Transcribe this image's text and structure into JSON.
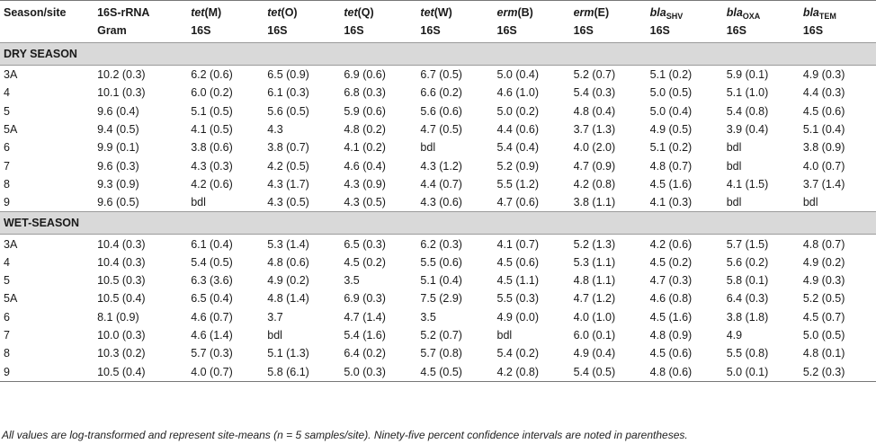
{
  "header": {
    "col0": "Season/site",
    "col1_line1": "16S-rRNA",
    "col1_line2": "Gram",
    "genes": [
      {
        "prefix": "tet",
        "suffix": "(M)",
        "sub": "",
        "norm": "16S"
      },
      {
        "prefix": "tet",
        "suffix": "(O)",
        "sub": "",
        "norm": "16S"
      },
      {
        "prefix": "tet",
        "suffix": "(Q)",
        "sub": "",
        "norm": "16S"
      },
      {
        "prefix": "tet",
        "suffix": "(W)",
        "sub": "",
        "norm": "16S"
      },
      {
        "prefix": "erm",
        "suffix": "(B)",
        "sub": "",
        "norm": "16S"
      },
      {
        "prefix": "erm",
        "suffix": "(E)",
        "sub": "",
        "norm": "16S"
      },
      {
        "prefix": "bla",
        "suffix": "",
        "sub": "SHV",
        "norm": "16S"
      },
      {
        "prefix": "bla",
        "suffix": "",
        "sub": "OXA",
        "norm": "16S"
      },
      {
        "prefix": "bla",
        "suffix": "",
        "sub": "TEM",
        "norm": "16S"
      }
    ]
  },
  "sections": [
    {
      "title": "DRY SEASON",
      "rows": [
        [
          "3A",
          "10.2 (0.3)",
          "6.2 (0.6)",
          "6.5 (0.9)",
          "6.9 (0.6)",
          "6.7 (0.5)",
          "5.0 (0.4)",
          "5.2 (0.7)",
          "5.1 (0.2)",
          "5.9 (0.1)",
          "4.9 (0.3)"
        ],
        [
          "4",
          "10.1 (0.3)",
          "6.0 (0.2)",
          "6.1 (0.3)",
          "6.8 (0.3)",
          "6.6 (0.2)",
          "4.6 (1.0)",
          "5.4 (0.3)",
          "5.0 (0.5)",
          "5.1 (1.0)",
          "4.4 (0.3)"
        ],
        [
          "5",
          "9.6 (0.4)",
          "5.1 (0.5)",
          "5.6 (0.5)",
          "5.9 (0.6)",
          "5.6 (0.6)",
          "5.0 (0.2)",
          "4.8 (0.4)",
          "5.0 (0.4)",
          "5.4 (0.8)",
          "4.5 (0.6)"
        ],
        [
          "5A",
          "9.4 (0.5)",
          "4.1 (0.5)",
          "4.3",
          "4.8 (0.2)",
          "4.7 (0.5)",
          "4.4 (0.6)",
          "3.7 (1.3)",
          "4.9 (0.5)",
          "3.9 (0.4)",
          "5.1 (0.4)"
        ],
        [
          "6",
          "9.9 (0.1)",
          "3.8 (0.6)",
          "3.8 (0.7)",
          "4.1 (0.2)",
          "bdl",
          "5.4 (0.4)",
          "4.0 (2.0)",
          "5.1 (0.2)",
          "bdl",
          "3.8 (0.9)"
        ],
        [
          "7",
          "9.6 (0.3)",
          "4.3 (0.3)",
          "4.2 (0.5)",
          "4.6 (0.4)",
          "4.3 (1.2)",
          "5.2 (0.9)",
          "4.7 (0.9)",
          "4.8 (0.7)",
          "bdl",
          "4.0 (0.7)"
        ],
        [
          "8",
          "9.3 (0.9)",
          "4.2 (0.6)",
          "4.3 (1.7)",
          "4.3 (0.9)",
          "4.4 (0.7)",
          "5.5 (1.2)",
          "4.2 (0.8)",
          "4.5 (1.6)",
          "4.1 (1.5)",
          "3.7 (1.4)"
        ],
        [
          "9",
          "9.6 (0.5)",
          "bdl",
          "4.3 (0.5)",
          "4.3 (0.5)",
          "4.3 (0.6)",
          "4.7 (0.6)",
          "3.8 (1.1)",
          "4.1 (0.3)",
          "bdl",
          "bdl"
        ]
      ]
    },
    {
      "title": "WET-SEASON",
      "rows": [
        [
          "3A",
          "10.4 (0.3)",
          "6.1 (0.4)",
          "5.3 (1.4)",
          "6.5 (0.3)",
          "6.2 (0.3)",
          "4.1 (0.7)",
          "5.2 (1.3)",
          "4.2 (0.6)",
          "5.7 (1.5)",
          "4.8 (0.7)"
        ],
        [
          "4",
          "10.4 (0.3)",
          "5.4 (0.5)",
          "4.8 (0.6)",
          "4.5 (0.2)",
          "5.5 (0.6)",
          "4.5 (0.6)",
          "5.3 (1.1)",
          "4.5 (0.2)",
          "5.6 (0.2)",
          "4.9 (0.2)"
        ],
        [
          "5",
          "10.5 (0.3)",
          "6.3 (3.6)",
          "4.9 (0.2)",
          "3.5",
          "5.1 (0.4)",
          "4.5 (1.1)",
          "4.8 (1.1)",
          "4.7 (0.3)",
          "5.8 (0.1)",
          "4.9 (0.3)"
        ],
        [
          "5A",
          "10.5 (0.4)",
          "6.5 (0.4)",
          "4.8 (1.4)",
          "6.9 (0.3)",
          "7.5 (2.9)",
          "5.5 (0.3)",
          "4.7 (1.2)",
          "4.6 (0.8)",
          "6.4 (0.3)",
          "5.2 (0.5)"
        ],
        [
          "6",
          "8.1 (0.9)",
          "4.6 (0.7)",
          "3.7",
          "4.7 (1.4)",
          "3.5",
          "4.9 (0.0)",
          "4.0 (1.0)",
          "4.5 (1.6)",
          "3.8 (1.8)",
          "4.5 (0.7)"
        ],
        [
          "7",
          "10.0 (0.3)",
          "4.6 (1.4)",
          "bdl",
          "5.4 (1.6)",
          "5.2 (0.7)",
          "bdl",
          "6.0 (0.1)",
          "4.8 (0.9)",
          "4.9",
          "5.0 (0.5)"
        ],
        [
          "8",
          "10.3 (0.2)",
          "5.7 (0.3)",
          "5.1 (1.3)",
          "6.4 (0.2)",
          "5.7 (0.8)",
          "5.4 (0.2)",
          "4.9 (0.4)",
          "4.5 (0.6)",
          "5.5 (0.8)",
          "4.8 (0.1)"
        ],
        [
          "9",
          "10.5 (0.4)",
          "4.0 (0.7)",
          "5.8 (6.1)",
          "5.0 (0.3)",
          "4.5 (0.5)",
          "4.2 (0.8)",
          "5.4 (0.5)",
          "4.8 (0.6)",
          "5.0 (0.1)",
          "5.2 (0.3)"
        ]
      ]
    }
  ],
  "footnote": "All values are log-transformed and represent site-means (n = 5 samples/site). Ninety-five percent confidence intervals are noted in parentheses."
}
